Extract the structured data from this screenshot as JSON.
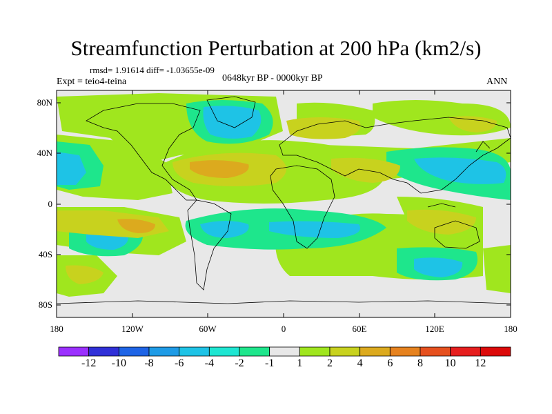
{
  "title": "Streamfunction Perturbation at 200 hPa (km2/s)",
  "stats": "rmsd= 1.91614 diff= -1.03655e-09",
  "expt": "Expt = teio4-teina",
  "period": "0648kyr BP - 0000kyr BP",
  "season": "ANN",
  "lat_labels": [
    "80N",
    "40N",
    "0",
    "40S",
    "80S"
  ],
  "lon_labels": [
    "180",
    "120W",
    "60W",
    "0",
    "60E",
    "120E",
    "180"
  ],
  "colorbar": {
    "labels": [
      "-12",
      "-10",
      "-8",
      "-6",
      "-4",
      "-2",
      "-1",
      "1",
      "2",
      "4",
      "6",
      "8",
      "10",
      "12"
    ],
    "colors": [
      "#9b30ff",
      "#3030d8",
      "#1e64e6",
      "#1e9be6",
      "#1ec3e6",
      "#1ee6d2",
      "#1ee68c",
      "#e8e8e8",
      "#a0e61e",
      "#c8d21e",
      "#dcaa1e",
      "#e6821e",
      "#e6501e",
      "#e61e1e",
      "#dc0a0a"
    ]
  }
}
